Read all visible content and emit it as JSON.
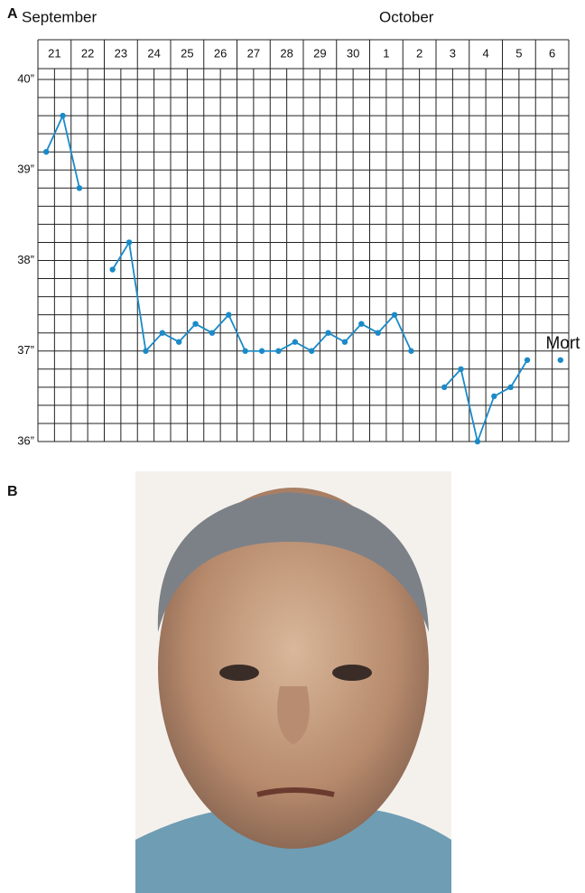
{
  "panel_a_label": "A",
  "panel_b_label": "B",
  "chart_data": {
    "type": "line",
    "month_labels": [
      "September",
      "October"
    ],
    "categories": [
      "21",
      null,
      "22",
      null,
      "23",
      null,
      "24",
      null,
      "25",
      null,
      "26",
      null,
      "27",
      null,
      "28",
      null,
      "29",
      null,
      "30",
      null,
      "1",
      null,
      "2",
      null,
      "3",
      null,
      "4",
      null,
      "5",
      null,
      "6",
      null
    ],
    "series": [
      {
        "color": "#1a8ac8",
        "values": [
          39.2,
          39.6,
          38.8,
          null,
          37.9,
          38.2,
          37.0,
          37.2,
          37.1,
          37.3,
          37.2,
          37.4,
          37.0,
          37.0,
          37.0,
          37.1,
          37.0,
          37.2,
          37.1,
          37.3,
          37.2,
          37.4,
          37.0,
          null,
          36.6,
          36.8,
          36.0,
          36.5,
          36.6,
          36.9,
          null,
          36.9
        ]
      }
    ],
    "ylim": [
      36,
      40
    ],
    "yticks": [
      {
        "value": 36,
        "label": "36”"
      },
      {
        "value": 37,
        "label": "37”"
      },
      {
        "value": 38,
        "label": "38”"
      },
      {
        "value": 39,
        "label": "39”"
      },
      {
        "value": 40,
        "label": "40”"
      }
    ],
    "annotation": "Mort",
    "grid": true
  }
}
